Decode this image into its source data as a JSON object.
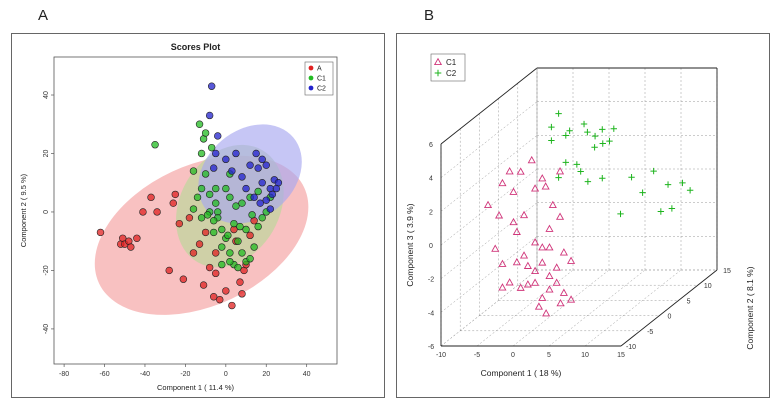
{
  "panels": {
    "a_label": "A",
    "b_label": "B"
  },
  "chart_data": [
    {
      "type": "scatter",
      "title": "Scores Plot",
      "xlabel": "Component 1 ( 11.4 %)",
      "ylabel": "Component 2 ( 9.5 %)",
      "xlim": [
        -85,
        55
      ],
      "ylim": [
        -52,
        53
      ],
      "xticks": [
        -80,
        -60,
        -40,
        -20,
        0,
        20,
        40
      ],
      "yticks": [
        -40,
        -20,
        0,
        20,
        40
      ],
      "legend_position": "top-right",
      "colors": {
        "A": "#e02020",
        "C1": "#22bb22",
        "C2": "#2222cc"
      },
      "ellipses": [
        {
          "group": "A",
          "cx": -12,
          "cy": -8,
          "rx": 56,
          "ry": 24,
          "angle": 25,
          "fill": "#f4a0a0"
        },
        {
          "group": "C1",
          "cx": 2,
          "cy": 2,
          "rx": 32,
          "ry": 17,
          "angle": 60,
          "fill": "#b8d89a"
        },
        {
          "group": "C2",
          "cx": 12,
          "cy": 13,
          "rx": 28,
          "ry": 15,
          "angle": 40,
          "fill": "#a8a8f0"
        }
      ],
      "series": [
        {
          "name": "A",
          "points": [
            [
              -62,
              -7
            ],
            [
              -52,
              -11
            ],
            [
              -51,
              -9
            ],
            [
              -50,
              -11
            ],
            [
              -48,
              -10
            ],
            [
              -47,
              -12
            ],
            [
              -44,
              -9
            ],
            [
              -41,
              0
            ],
            [
              -37,
              5
            ],
            [
              -34,
              0
            ],
            [
              -28,
              -20
            ],
            [
              -26,
              3
            ],
            [
              -25,
              6
            ],
            [
              -23,
              -4
            ],
            [
              -21,
              -23
            ],
            [
              -16,
              -14
            ],
            [
              -13,
              -11
            ],
            [
              -11,
              -25
            ],
            [
              -10,
              -7
            ],
            [
              -8,
              -19
            ],
            [
              -6,
              -29
            ],
            [
              -5,
              -21
            ],
            [
              -3,
              -30
            ],
            [
              0,
              -27
            ],
            [
              3,
              -32
            ],
            [
              5,
              -10
            ],
            [
              7,
              -24
            ],
            [
              8,
              -28
            ],
            [
              9,
              -20
            ],
            [
              10,
              -18
            ],
            [
              12,
              -8
            ],
            [
              14,
              -3
            ],
            [
              -5,
              -14
            ],
            [
              -18,
              -2
            ],
            [
              4,
              -6
            ]
          ]
        },
        {
          "name": "C1",
          "points": [
            [
              -11,
              25
            ],
            [
              -13,
              30
            ],
            [
              -10,
              27
            ],
            [
              -7,
              22
            ],
            [
              -12,
              20
            ],
            [
              -35,
              23
            ],
            [
              -16,
              14
            ],
            [
              -10,
              13
            ],
            [
              -14,
              5
            ],
            [
              -12,
              8
            ],
            [
              -8,
              6
            ],
            [
              -5,
              3
            ],
            [
              -5,
              8
            ],
            [
              -6,
              -7
            ],
            [
              -4,
              0
            ],
            [
              -8,
              0
            ],
            [
              -2,
              -6
            ],
            [
              -12,
              -2
            ],
            [
              2,
              13
            ],
            [
              0,
              8
            ],
            [
              2,
              5
            ],
            [
              5,
              2
            ],
            [
              8,
              3
            ],
            [
              10,
              -6
            ],
            [
              12,
              5
            ],
            [
              6,
              -10
            ],
            [
              8,
              -14
            ],
            [
              10,
              -17
            ],
            [
              2,
              -14
            ],
            [
              4,
              -18
            ],
            [
              0,
              -9
            ],
            [
              -2,
              -12
            ],
            [
              14,
              -12
            ],
            [
              16,
              -5
            ],
            [
              18,
              -2
            ],
            [
              20,
              0
            ],
            [
              22,
              5
            ],
            [
              -4,
              -2
            ],
            [
              2,
              -17
            ],
            [
              6,
              -19
            ],
            [
              12,
              -16
            ],
            [
              -6,
              -3
            ],
            [
              4,
              -4
            ],
            [
              -2,
              -18
            ],
            [
              16,
              7
            ],
            [
              -16,
              1
            ],
            [
              1,
              -8
            ],
            [
              7,
              -5
            ],
            [
              -9,
              -1
            ],
            [
              13,
              -1
            ]
          ]
        },
        {
          "name": "C2",
          "points": [
            [
              -7,
              43
            ],
            [
              -8,
              33
            ],
            [
              -4,
              26
            ],
            [
              -5,
              20
            ],
            [
              0,
              18
            ],
            [
              3,
              14
            ],
            [
              5,
              20
            ],
            [
              8,
              12
            ],
            [
              12,
              16
            ],
            [
              16,
              15
            ],
            [
              18,
              10
            ],
            [
              22,
              8
            ],
            [
              24,
              11
            ],
            [
              26,
              10
            ],
            [
              20,
              16
            ],
            [
              18,
              18
            ],
            [
              15,
              20
            ],
            [
              10,
              8
            ],
            [
              14,
              5
            ],
            [
              17,
              3
            ],
            [
              20,
              4
            ],
            [
              23,
              6
            ],
            [
              25,
              8
            ],
            [
              22,
              1
            ],
            [
              -6,
              15
            ]
          ]
        }
      ]
    },
    {
      "type": "scatter",
      "title": "",
      "xlabel": "Component 1 ( 18 %)",
      "ylabel": "Component 2 ( 8.1 %)",
      "zlabel": "Component 3 ( 3.9 %)",
      "xlim": [
        -10,
        15
      ],
      "ylim": [
        -10,
        15
      ],
      "zlim": [
        -6,
        6
      ],
      "xticks": [
        -10,
        -5,
        0,
        5,
        10,
        15
      ],
      "yticks": [
        -10,
        -5,
        0,
        5,
        10,
        15
      ],
      "zticks": [
        -6,
        -4,
        -2,
        0,
        2,
        4,
        6
      ],
      "legend_position": "top-left",
      "colors": {
        "C1": "#d0357a",
        "C2": "#1db41d"
      },
      "series": [
        {
          "name": "C1",
          "marker": "triangle",
          "points": [
            [
              -4,
              -9,
              2.2
            ],
            [
              -2,
              -9,
              3.5
            ],
            [
              -1,
              -9,
              4.2
            ],
            [
              0,
              -8,
              4.0
            ],
            [
              1,
              -7,
              4.5
            ],
            [
              -3,
              -8,
              1.4
            ],
            [
              -1,
              -8,
              1.0
            ],
            [
              0,
              -9,
              0.6
            ],
            [
              2,
              -8,
              3.0
            ],
            [
              3,
              -8,
              3.6
            ],
            [
              4,
              -9,
              3.3
            ],
            [
              5,
              -9,
              2.2
            ],
            [
              1,
              -9,
              -0.8
            ],
            [
              2,
              -8,
              -0.2
            ],
            [
              3,
              -8,
              -0.5
            ],
            [
              4,
              -8,
              -0.5
            ],
            [
              6,
              -8,
              -0.8
            ],
            [
              -2,
              -9,
              -1.3
            ],
            [
              0,
              -9,
              -1.2
            ],
            [
              1,
              -8,
              -1.6
            ],
            [
              2,
              -8,
              -1.9
            ],
            [
              3,
              -8,
              -1.4
            ],
            [
              4,
              -8,
              -2.2
            ],
            [
              5,
              -8,
              -1.7
            ],
            [
              -1,
              -9,
              -2.4
            ],
            [
              0,
              -8,
              -2.9
            ],
            [
              1,
              -8,
              -2.7
            ],
            [
              2,
              -8,
              -2.6
            ],
            [
              3,
              -8,
              -3.5
            ],
            [
              4,
              -8,
              -3.0
            ],
            [
              5,
              -8,
              -2.6
            ],
            [
              6,
              -8,
              -3.2
            ],
            [
              7,
              -8,
              -3.6
            ],
            [
              2,
              -7,
              -4.2
            ],
            [
              3,
              -7,
              -4.6
            ],
            [
              -3,
              -9,
              -0.4
            ],
            [
              6,
              -9,
              4.2
            ],
            [
              -1,
              -8,
              2.8
            ],
            [
              1,
              -9,
              1.6
            ],
            [
              4,
              -8,
              0.6
            ],
            [
              6,
              -9,
              1.5
            ],
            [
              7,
              -8,
              -1.3
            ],
            [
              -2,
              -9,
              -2.7
            ],
            [
              5,
              -7,
              -4.0
            ]
          ]
        },
        {
          "name": "C2",
          "marker": "plus",
          "points": [
            [
              0,
              0,
              5.2
            ],
            [
              1,
              0,
              6.0
            ],
            [
              2,
              0,
              4.7
            ],
            [
              0,
              0,
              4.4
            ],
            [
              2,
              1,
              4.8
            ],
            [
              4,
              1,
              5.2
            ],
            [
              5,
              0,
              4.9
            ],
            [
              5,
              2,
              4.3
            ],
            [
              6,
              2,
              4.7
            ],
            [
              7,
              2,
              4.0
            ],
            [
              6,
              0,
              4.0
            ],
            [
              2,
              0,
              3.1
            ],
            [
              3,
              1,
              2.8
            ],
            [
              3,
              2,
              2.2
            ],
            [
              5,
              4,
              3.5
            ],
            [
              6,
              5,
              4.2
            ],
            [
              1,
              0,
              2.2
            ],
            [
              4,
              2,
              1.6
            ],
            [
              6,
              2,
              1.8
            ],
            [
              9,
              4,
              1.5
            ],
            [
              11,
              6,
              1.5
            ],
            [
              10,
              5,
              0.4
            ],
            [
              13,
              6,
              0.7
            ],
            [
              15,
              6,
              0.8
            ],
            [
              15,
              8,
              0.0
            ],
            [
              12,
              6,
              -0.9
            ],
            [
              13,
              7,
              -0.9
            ],
            [
              8,
              3,
              -0.5
            ]
          ]
        }
      ]
    }
  ]
}
